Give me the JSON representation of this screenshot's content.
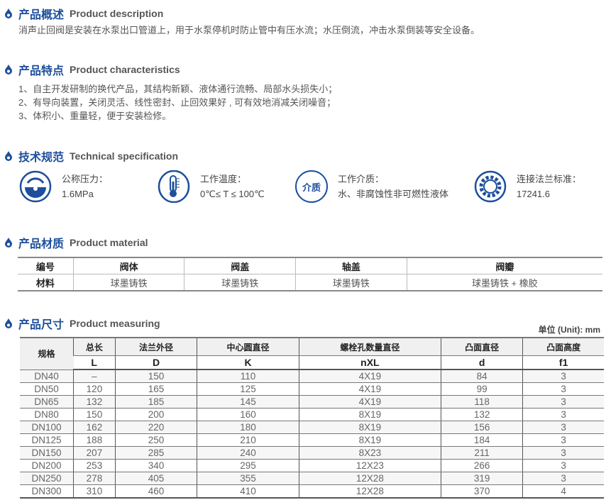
{
  "accent": "#1d4f9c",
  "description": {
    "title_zh": "产品概述",
    "title_en": "Product description",
    "text": "消声止回阀是安装在水泵出口管道上，用于水泵停机时防止管中有压水流；水压倒流，冲击水泵倒装等安全设备。"
  },
  "characteristics": {
    "title_zh": "产品特点",
    "title_en": "Product characteristics",
    "items": [
      "1、自主开发研制的换代产品，其结构新颖、液体通行流畅、局部水头损失小；",
      "2、有导向装置，关闭灵活、线性密封、止回效果好 , 可有效地消减关闭噪音；",
      "3、体积小、重量轻，便于安装检修。"
    ]
  },
  "technical": {
    "title_zh": "技术规范",
    "title_en": "Technical specification",
    "items": [
      {
        "icon": "pressure-gauge-icon",
        "label": "公称压力：",
        "value": "1.6MPa"
      },
      {
        "icon": "thermometer-icon",
        "label": "工作温度：",
        "value": "0℃≤ T ≤ 100℃"
      },
      {
        "icon": "medium-icon",
        "icon_text": "介质",
        "label": "工作介质：",
        "value": "水、非腐蚀性非可燃性液体"
      },
      {
        "icon": "flange-gear-icon",
        "label": "连接法兰标准：",
        "value": "17241.6"
      }
    ]
  },
  "material": {
    "title_zh": "产品材质",
    "title_en": "Product material",
    "header": [
      "编号",
      "阀体",
      "阀盖",
      "轴盖",
      "阀瓣"
    ],
    "row": [
      "材料",
      "球墨铸铁",
      "球墨铸铁",
      "球墨铸铁",
      "球墨铸铁 + 橡胶"
    ]
  },
  "measuring": {
    "title_zh": "产品尺寸",
    "title_en": "Product measuring",
    "unit": "单位 (Unit): mm",
    "header_zh": [
      "规格",
      "总长",
      "法兰外径",
      "中心圆直径",
      "螺栓孔数量直径",
      "凸面直径",
      "凸面高度"
    ],
    "header_sym": [
      "L",
      "D",
      "K",
      "nXL",
      "d",
      "f1"
    ],
    "rows": [
      [
        "DN40",
        "–",
        "150",
        "110",
        "4X19",
        "84",
        "3"
      ],
      [
        "DN50",
        "120",
        "165",
        "125",
        "4X19",
        "99",
        "3"
      ],
      [
        "DN65",
        "132",
        "185",
        "145",
        "4X19",
        "118",
        "3"
      ],
      [
        "DN80",
        "150",
        "200",
        "160",
        "8X19",
        "132",
        "3"
      ],
      [
        "DN100",
        "162",
        "220",
        "180",
        "8X19",
        "156",
        "3"
      ],
      [
        "DN125",
        "188",
        "250",
        "210",
        "8X19",
        "184",
        "3"
      ],
      [
        "DN150",
        "207",
        "285",
        "240",
        "8X23",
        "211",
        "3"
      ],
      [
        "DN200",
        "253",
        "340",
        "295",
        "12X23",
        "266",
        "3"
      ],
      [
        "DN250",
        "278",
        "405",
        "355",
        "12X28",
        "319",
        "3"
      ],
      [
        "DN300",
        "310",
        "460",
        "410",
        "12X28",
        "370",
        "4"
      ]
    ]
  }
}
